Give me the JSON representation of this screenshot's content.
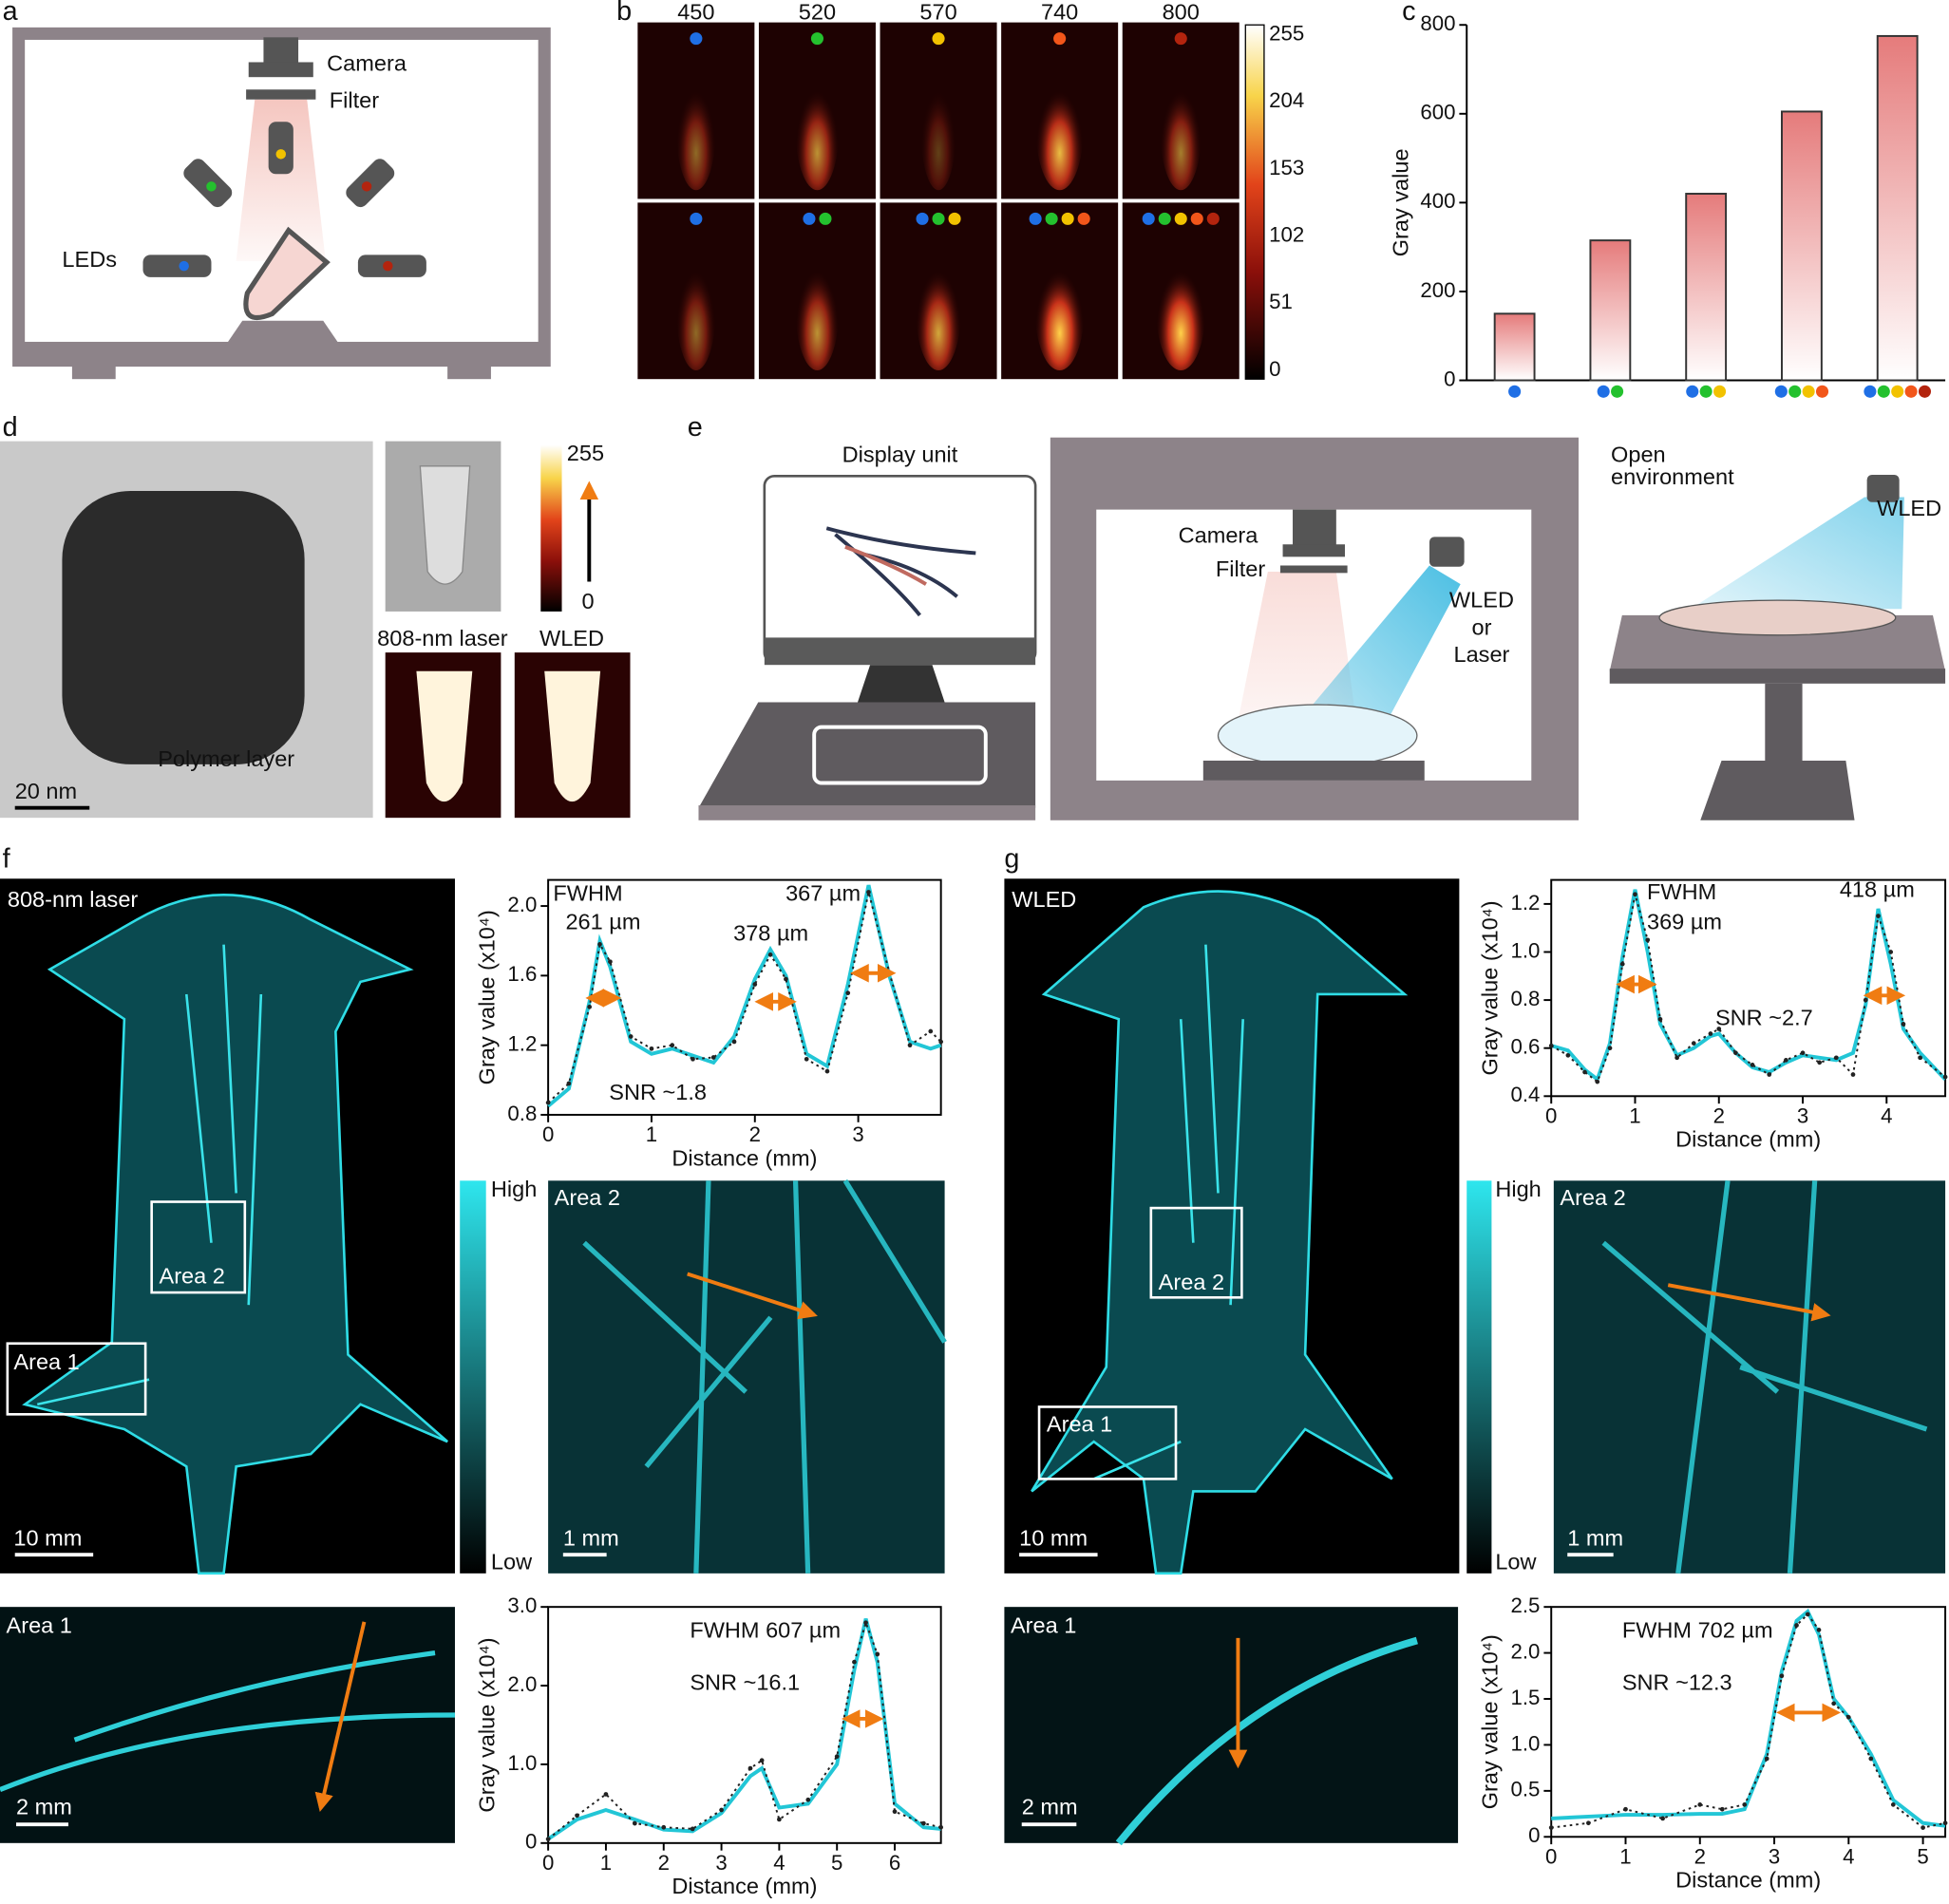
{
  "panel_labels": [
    "a",
    "b",
    "c",
    "d",
    "e",
    "f",
    "g"
  ],
  "panel_a": {
    "camera": "Camera",
    "filter": "Filter",
    "leds": "LEDs"
  },
  "panel_b": {
    "wavelengths": [
      "450",
      "520",
      "570",
      "740",
      "800"
    ],
    "colorbar_ticks": [
      255,
      204,
      153,
      102,
      51,
      0
    ]
  },
  "panel_d": {
    "polymer_layer": "Polymer layer",
    "scale_bar": "20 nm",
    "colorbar_ticks": [
      255,
      0
    ],
    "laser": "808-nm laser",
    "wled": "WLED"
  },
  "panel_e": {
    "display_unit": "Display unit",
    "camera": "Camera",
    "filter": "Filter",
    "light_source": [
      "WLED",
      "or",
      "Laser"
    ],
    "open_environment": [
      "Open",
      "environment"
    ],
    "wled": "WLED"
  },
  "panel_f": {
    "mode": "808-nm laser",
    "area_1": "Area 1",
    "area_2": "Area 2",
    "scale_main": "10 mm",
    "colorbar_high": "High",
    "colorbar_low": "Low",
    "inset_label": "Area 2",
    "scale_inset": "1 mm",
    "area1_label": "Area 1",
    "scale_area1": "2 mm"
  },
  "panel_g": {
    "mode": "WLED",
    "area_1": "Area 1",
    "area_2": "Area 2",
    "scale_main": "10 mm",
    "colorbar_high": "High",
    "colorbar_low": "Low",
    "inset_label": "Area 2",
    "scale_inset": "1 mm",
    "area1_label": "Area 1",
    "scale_area1": "2 mm"
  },
  "chart_data": [
    {
      "type": "bar",
      "ylabel": "Gray value",
      "categories": [
        null,
        null,
        null,
        null,
        null
      ],
      "values": [
        150,
        315,
        420,
        605,
        775
      ],
      "category_colors": [
        [
          "#1f6fe5"
        ],
        [
          "#1f6fe5",
          "#24c12e"
        ],
        [
          "#1f6fe5",
          "#24c12e",
          "#f2c200"
        ],
        [
          "#1f6fe5",
          "#24c12e",
          "#f2c200",
          "#f2561a"
        ],
        [
          "#1f6fe5",
          "#24c12e",
          "#f2c200",
          "#f2561a",
          "#b3240e"
        ]
      ],
      "color": "#e57b7b",
      "ylim": [
        0,
        800
      ],
      "yticks": [
        0,
        200,
        400,
        600,
        800
      ]
    },
    {
      "type": "line",
      "xlabel": "Distance (mm)",
      "ylabel": "Gray value (x10⁴)",
      "x": [
        0,
        0.2,
        0.4,
        0.5,
        0.6,
        0.8,
        1.0,
        1.2,
        1.4,
        1.6,
        1.8,
        2.0,
        2.15,
        2.3,
        2.5,
        2.7,
        2.9,
        3.1,
        3.3,
        3.5,
        3.7,
        3.8
      ],
      "series": [
        {
          "color": "#22c6d6",
          "line_style": "solid",
          "values": [
            0.85,
            0.95,
            1.45,
            1.8,
            1.65,
            1.22,
            1.15,
            1.18,
            1.14,
            1.1,
            1.25,
            1.58,
            1.75,
            1.6,
            1.15,
            1.08,
            1.55,
            2.12,
            1.6,
            1.22,
            1.18,
            1.2
          ]
        },
        {
          "color": "#222222",
          "line_style": "dotted",
          "values": [
            0.87,
            0.98,
            1.42,
            1.78,
            1.68,
            1.25,
            1.18,
            1.2,
            1.12,
            1.13,
            1.22,
            1.55,
            1.72,
            1.58,
            1.12,
            1.05,
            1.5,
            2.08,
            1.62,
            1.2,
            1.28,
            1.22
          ]
        }
      ],
      "xlim": [
        0,
        3.8
      ],
      "ylim": [
        0.8,
        2.15
      ],
      "xticks": [
        0,
        1,
        2,
        3
      ],
      "yticks": [
        {
          "value": 0.8,
          "label": "0.8"
        },
        {
          "value": 1.2,
          "label": "1.2"
        },
        {
          "value": 1.6,
          "label": "1.6"
        },
        {
          "value": 2.0,
          "label": "2.0"
        }
      ],
      "annotations": [
        "FWHM",
        "261 µm",
        "378 µm",
        "367 µm",
        "SNR ~1.8"
      ]
    },
    {
      "type": "line",
      "xlabel": "Distance (mm)",
      "ylabel": "Gray value (x10⁴)",
      "x": [
        0,
        0.2,
        0.4,
        0.55,
        0.7,
        0.85,
        1.0,
        1.15,
        1.3,
        1.5,
        1.7,
        1.9,
        2.0,
        2.2,
        2.4,
        2.6,
        2.8,
        3.0,
        3.2,
        3.4,
        3.6,
        3.75,
        3.9,
        4.05,
        4.2,
        4.4,
        4.7
      ],
      "series": [
        {
          "color": "#22c6d6",
          "line_style": "solid",
          "values": [
            0.61,
            0.59,
            0.51,
            0.47,
            0.62,
            0.98,
            1.26,
            1.0,
            0.7,
            0.57,
            0.6,
            0.65,
            0.66,
            0.58,
            0.52,
            0.5,
            0.54,
            0.57,
            0.56,
            0.55,
            0.58,
            0.78,
            1.18,
            0.95,
            0.68,
            0.58,
            0.47
          ]
        },
        {
          "color": "#222222",
          "line_style": "dotted",
          "values": [
            0.61,
            0.57,
            0.5,
            0.46,
            0.6,
            0.95,
            1.24,
            1.05,
            0.72,
            0.56,
            0.62,
            0.66,
            0.68,
            0.58,
            0.53,
            0.49,
            0.55,
            0.58,
            0.54,
            0.56,
            0.49,
            0.8,
            1.15,
            1.0,
            0.7,
            0.56,
            0.48
          ]
        }
      ],
      "xlim": [
        0,
        4.7
      ],
      "ylim": [
        0.4,
        1.3
      ],
      "xticks": [
        0,
        1,
        2,
        3,
        4
      ],
      "yticks": [
        0.4,
        0.6,
        0.8,
        {
          "value": 1.0,
          "label": "1.0"
        },
        1.2
      ],
      "annotations": [
        "FWHM",
        "369 µm",
        "418 µm",
        "SNR ~2.7"
      ]
    },
    {
      "type": "line",
      "xlabel": "Distance (mm)",
      "ylabel": "Gray value (x10⁴)",
      "x": [
        0,
        0.5,
        1.0,
        1.5,
        2.0,
        2.5,
        3.0,
        3.5,
        3.7,
        4.0,
        4.5,
        5.0,
        5.3,
        5.5,
        5.7,
        6.0,
        6.5,
        6.8
      ],
      "series": [
        {
          "color": "#22c6d6",
          "line_style": "solid",
          "values": [
            0.05,
            0.3,
            0.42,
            0.3,
            0.17,
            0.15,
            0.38,
            0.85,
            0.95,
            0.45,
            0.5,
            1.0,
            2.2,
            2.85,
            2.3,
            0.5,
            0.2,
            0.18
          ]
        },
        {
          "color": "#222222",
          "line_style": "dotted",
          "values": [
            0.05,
            0.35,
            0.62,
            0.25,
            0.2,
            0.18,
            0.42,
            0.95,
            1.05,
            0.3,
            0.55,
            1.1,
            2.3,
            2.8,
            2.4,
            0.4,
            0.25,
            0.2
          ]
        }
      ],
      "xlim": [
        0,
        6.8
      ],
      "ylim": [
        0,
        3.0
      ],
      "xticks": [
        0,
        1,
        2,
        3,
        4,
        5,
        6
      ],
      "yticks": [
        0,
        {
          "value": 1,
          "label": "1.0"
        },
        {
          "value": 2,
          "label": "2.0"
        },
        {
          "value": 3,
          "label": "3.0"
        }
      ],
      "annotations": [
        "FWHM 607 µm",
        "SNR ~16.1"
      ]
    },
    {
      "type": "line",
      "xlabel": "Distance (mm)",
      "ylabel": "Gray value (x10⁴)",
      "x": [
        0,
        0.5,
        1.0,
        1.5,
        2.0,
        2.3,
        2.6,
        2.9,
        3.1,
        3.3,
        3.45,
        3.6,
        3.8,
        4.0,
        4.3,
        4.6,
        5.0,
        5.3
      ],
      "series": [
        {
          "color": "#22c6d6",
          "line_style": "solid",
          "values": [
            0.2,
            0.22,
            0.24,
            0.24,
            0.25,
            0.25,
            0.3,
            0.9,
            1.8,
            2.35,
            2.45,
            2.2,
            1.5,
            1.3,
            0.9,
            0.4,
            0.15,
            0.12
          ]
        },
        {
          "color": "#222222",
          "line_style": "dotted",
          "values": [
            0.1,
            0.15,
            0.3,
            0.2,
            0.35,
            0.3,
            0.35,
            0.85,
            1.75,
            2.3,
            2.42,
            2.25,
            1.45,
            1.3,
            0.85,
            0.35,
            0.1,
            0.15
          ]
        }
      ],
      "xlim": [
        0,
        5.3
      ],
      "ylim": [
        0,
        2.5
      ],
      "xticks": [
        0,
        1,
        2,
        3,
        4,
        5
      ],
      "yticks": [
        0,
        {
          "value": 0.5,
          "label": "0.5"
        },
        {
          "value": 1,
          "label": "1.0"
        },
        {
          "value": 1.5,
          "label": "1.5"
        },
        {
          "value": 2,
          "label": "2.0"
        },
        {
          "value": 2.5,
          "label": "2.5"
        }
      ],
      "annotations": [
        "FWHM 702 µm",
        "SNR ~12.3"
      ]
    }
  ]
}
